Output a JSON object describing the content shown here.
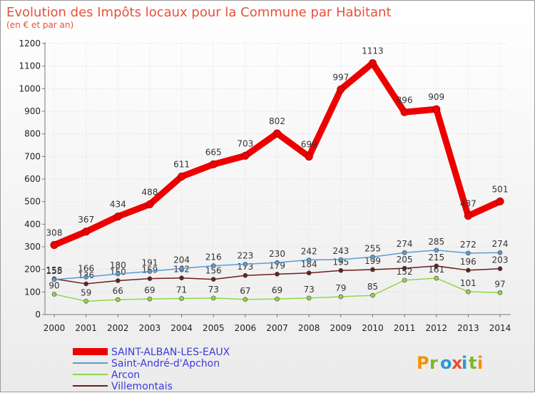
{
  "chart_data": {
    "type": "line",
    "title": "Evolution des Impôts locaux pour la Commune par Habitant",
    "subtitle": "(en € et par an)",
    "x": [
      "2000",
      "2001",
      "2002",
      "2003",
      "2004",
      "2005",
      "2006",
      "2007",
      "2008",
      "2009",
      "2010",
      "2011",
      "2012",
      "2013",
      "2014"
    ],
    "ylim": [
      0,
      1200
    ],
    "yticks": [
      "0",
      "100",
      "200",
      "300",
      "400",
      "500",
      "600",
      "700",
      "800",
      "900",
      "1000",
      "1100",
      "1200"
    ],
    "grid": true,
    "series": [
      {
        "name": "Villemontais",
        "color": "#6b1e1e",
        "values": [
          158,
          136,
          150,
          159,
          162,
          156,
          173,
          179,
          184,
          195,
          199,
          205,
          215,
          196,
          203
        ],
        "labels": [
          "158",
          "136",
          "150",
          "159",
          "162",
          "156",
          "173",
          "179",
          "184",
          "195",
          "199",
          "205",
          "215",
          "196",
          "203"
        ]
      },
      {
        "name": "Arcon",
        "color": "#8fd64a",
        "values": [
          90,
          59,
          66,
          69,
          71,
          73,
          67,
          69,
          73,
          79,
          85,
          152,
          161,
          101,
          97
        ],
        "labels": [
          "90",
          "59",
          "66",
          "69",
          "71",
          "73",
          "67",
          "69",
          "73",
          "79",
          "85",
          "152",
          "161",
          "101",
          "97"
        ]
      },
      {
        "name": "Saint-André-d'Apchon",
        "color": "#5b9bd5",
        "values": [
          155,
          166,
          180,
          191,
          204,
          216,
          223,
          230,
          242,
          243,
          255,
          274,
          285,
          272,
          274
        ],
        "labels": [
          "155",
          "166",
          "180",
          "191",
          "204",
          "216",
          "223",
          "230",
          "242",
          "243",
          "255",
          "274",
          "285",
          "272",
          "274"
        ]
      },
      {
        "name": "SAINT-ALBAN-LES-EAUX",
        "color": "#ee0000",
        "values": [
          308,
          367,
          434,
          488,
          611,
          665,
          703,
          802,
          699,
          997,
          1113,
          896,
          909,
          437,
          501
        ],
        "labels": [
          "308",
          "367",
          "434",
          "488",
          "611",
          "665",
          "703",
          "802",
          "699",
          "997",
          "1113",
          "896",
          "909",
          "437",
          "501"
        ]
      }
    ],
    "legend": [
      {
        "name": "SAINT-ALBAN-LES-EAUX",
        "color": "#ee0000",
        "text_color": "#3b3bd8"
      },
      {
        "name": "Saint-André-d'Apchon",
        "color": "#5b9bd5",
        "text_color": "#3b3bd8"
      },
      {
        "name": "Arcon",
        "color": "#8fd64a",
        "text_color": "#3b3bd8"
      },
      {
        "name": "Villemontais",
        "color": "#6b1e1e",
        "text_color": "#3b3bd8"
      }
    ]
  },
  "branding": {
    "logo_text": "Proxiti"
  }
}
